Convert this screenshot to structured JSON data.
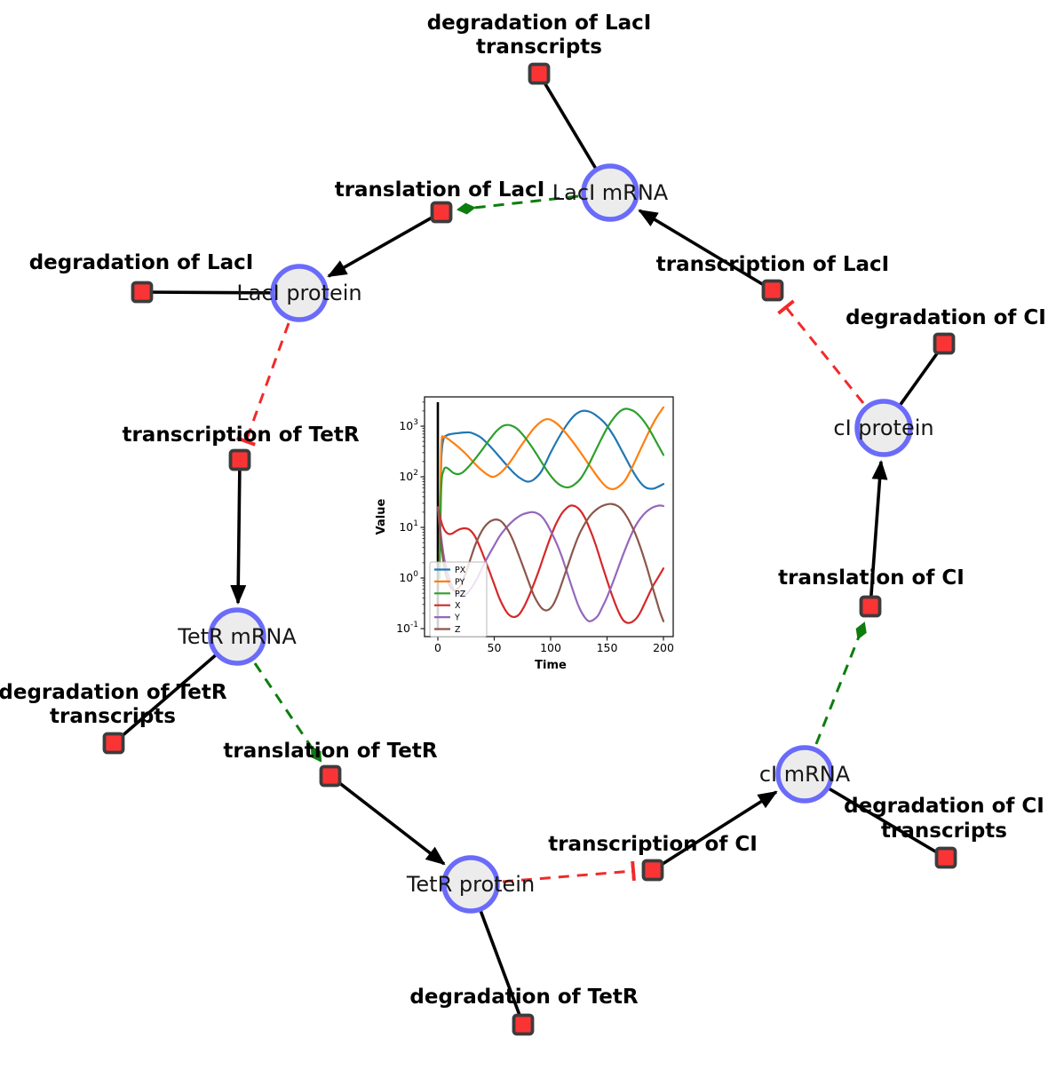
{
  "diagram": {
    "species": [
      {
        "label": "LacI mRNA"
      },
      {
        "label": "LacI protein"
      },
      {
        "label": "TetR mRNA"
      },
      {
        "label": "TetR protein"
      },
      {
        "label": "cI mRNA"
      },
      {
        "label": "cI protein"
      }
    ],
    "reactions": [
      {
        "lines": [
          "degradation of LacI",
          "transcripts"
        ]
      },
      {
        "lines": [
          "translation of LacI"
        ]
      },
      {
        "lines": [
          "degradation of LacI"
        ]
      },
      {
        "lines": [
          "transcription of TetR"
        ]
      },
      {
        "lines": [
          "degradation of TetR",
          "transcripts"
        ]
      },
      {
        "lines": [
          "translation of TetR"
        ]
      },
      {
        "lines": [
          "degradation of TetR"
        ]
      },
      {
        "lines": [
          "transcription of CI"
        ]
      },
      {
        "lines": [
          "degradation of CI",
          "transcripts"
        ]
      },
      {
        "lines": [
          "translation of CI"
        ]
      },
      {
        "lines": [
          "transcription of LacI"
        ]
      },
      {
        "lines": [
          "degradation of CI"
        ]
      }
    ],
    "colors": {
      "species_fill": "#ececec",
      "species_border": "#6b6bfa",
      "reaction_fill": "#fa3434",
      "reaction_border": "#3c3c3c",
      "reactant_product_edge": "#000000",
      "catalysis_edge": "#0d7d0d",
      "inhibition_edge": "#f12a2a"
    }
  },
  "chart_data": {
    "type": "line",
    "title": "",
    "xlabel": "Time",
    "ylabel": "Value",
    "x_ticks": [
      0,
      50,
      100,
      150,
      200
    ],
    "xlim": [
      -10,
      210
    ],
    "y_scale": "log",
    "y_tick_exponents": [
      -1,
      0,
      1,
      2,
      3
    ],
    "grid": false,
    "legend_position": "lower left",
    "axvline_x": 0,
    "series": [
      {
        "name": "PX",
        "color": "#1f77b4",
        "points": [
          [
            1.5,
            3
          ],
          [
            3,
            200
          ],
          [
            5,
            550
          ],
          [
            8,
            660
          ],
          [
            12,
            700
          ],
          [
            18,
            730
          ],
          [
            25,
            755
          ],
          [
            30,
            735
          ],
          [
            38,
            600
          ],
          [
            45,
            430
          ],
          [
            52,
            290
          ],
          [
            60,
            180
          ],
          [
            68,
            115
          ],
          [
            75,
            88
          ],
          [
            80,
            80
          ],
          [
            85,
            88
          ],
          [
            92,
            130
          ],
          [
            100,
            300
          ],
          [
            108,
            640
          ],
          [
            116,
            1200
          ],
          [
            122,
            1700
          ],
          [
            128,
            2000
          ],
          [
            134,
            1950
          ],
          [
            140,
            1650
          ],
          [
            148,
            1150
          ],
          [
            156,
            640
          ],
          [
            164,
            300
          ],
          [
            172,
            140
          ],
          [
            178,
            85
          ],
          [
            184,
            62
          ],
          [
            190,
            58
          ],
          [
            195,
            63
          ],
          [
            200,
            72
          ]
        ]
      },
      {
        "name": "PY",
        "color": "#ff7f0e",
        "points": [
          [
            1.5,
            2
          ],
          [
            3,
            350
          ],
          [
            5,
            600
          ],
          [
            8,
            580
          ],
          [
            12,
            500
          ],
          [
            18,
            390
          ],
          [
            25,
            280
          ],
          [
            32,
            190
          ],
          [
            38,
            140
          ],
          [
            44,
            110
          ],
          [
            48,
            100
          ],
          [
            52,
            105
          ],
          [
            58,
            135
          ],
          [
            65,
            210
          ],
          [
            72,
            360
          ],
          [
            80,
            640
          ],
          [
            86,
            950
          ],
          [
            92,
            1250
          ],
          [
            96,
            1370
          ],
          [
            100,
            1340
          ],
          [
            106,
            1100
          ],
          [
            112,
            800
          ],
          [
            120,
            480
          ],
          [
            128,
            270
          ],
          [
            136,
            150
          ],
          [
            144,
            85
          ],
          [
            150,
            62
          ],
          [
            155,
            57
          ],
          [
            160,
            63
          ],
          [
            166,
            85
          ],
          [
            172,
            150
          ],
          [
            180,
            360
          ],
          [
            188,
            850
          ],
          [
            194,
            1500
          ],
          [
            200,
            2350
          ]
        ]
      },
      {
        "name": "PZ",
        "color": "#2ca02c",
        "points": [
          [
            1.5,
            1
          ],
          [
            3,
            60
          ],
          [
            5,
            130
          ],
          [
            7,
            152
          ],
          [
            10,
            140
          ],
          [
            14,
            118
          ],
          [
            18,
            113
          ],
          [
            22,
            122
          ],
          [
            28,
            165
          ],
          [
            34,
            240
          ],
          [
            40,
            360
          ],
          [
            46,
            550
          ],
          [
            52,
            800
          ],
          [
            57,
            990
          ],
          [
            61,
            1060
          ],
          [
            65,
            1030
          ],
          [
            70,
            900
          ],
          [
            76,
            650
          ],
          [
            82,
            430
          ],
          [
            88,
            270
          ],
          [
            94,
            165
          ],
          [
            100,
            105
          ],
          [
            106,
            75
          ],
          [
            111,
            64
          ],
          [
            116,
            62
          ],
          [
            121,
            70
          ],
          [
            127,
            95
          ],
          [
            133,
            160
          ],
          [
            139,
            300
          ],
          [
            145,
            560
          ],
          [
            151,
            1000
          ],
          [
            157,
            1550
          ],
          [
            162,
            2000
          ],
          [
            166,
            2200
          ],
          [
            170,
            2150
          ],
          [
            175,
            1900
          ],
          [
            181,
            1400
          ],
          [
            187,
            900
          ],
          [
            193,
            520
          ],
          [
            200,
            270
          ]
        ]
      },
      {
        "name": "X",
        "color": "#d62728",
        "points": [
          [
            0,
            25
          ],
          [
            2,
            16
          ],
          [
            4,
            11
          ],
          [
            6,
            8.8
          ],
          [
            8,
            7.8
          ],
          [
            10,
            7.4
          ],
          [
            13,
            7.6
          ],
          [
            16,
            8.4
          ],
          [
            20,
            9.3
          ],
          [
            24,
            9.6
          ],
          [
            28,
            9.0
          ],
          [
            32,
            7.2
          ],
          [
            36,
            4.8
          ],
          [
            40,
            2.9
          ],
          [
            45,
            1.5
          ],
          [
            50,
            0.75
          ],
          [
            55,
            0.38
          ],
          [
            60,
            0.23
          ],
          [
            64,
            0.18
          ],
          [
            68,
            0.17
          ],
          [
            72,
            0.19
          ],
          [
            76,
            0.26
          ],
          [
            80,
            0.4
          ],
          [
            85,
            0.75
          ],
          [
            90,
            1.5
          ],
          [
            95,
            3.2
          ],
          [
            100,
            6.5
          ],
          [
            105,
            12
          ],
          [
            110,
            19
          ],
          [
            115,
            25
          ],
          [
            118,
            27
          ],
          [
            122,
            26
          ],
          [
            126,
            22
          ],
          [
            130,
            16
          ],
          [
            135,
            9
          ],
          [
            140,
            4.5
          ],
          [
            145,
            2.0
          ],
          [
            150,
            0.9
          ],
          [
            155,
            0.42
          ],
          [
            160,
            0.22
          ],
          [
            164,
            0.15
          ],
          [
            168,
            0.13
          ],
          [
            172,
            0.135
          ],
          [
            176,
            0.16
          ],
          [
            180,
            0.22
          ],
          [
            185,
            0.38
          ],
          [
            190,
            0.65
          ],
          [
            195,
            1.0
          ],
          [
            200,
            1.55
          ]
        ]
      },
      {
        "name": "Y",
        "color": "#9467bd",
        "points": [
          [
            0,
            25
          ],
          [
            2,
            10
          ],
          [
            4,
            4.2
          ],
          [
            6,
            2.2
          ],
          [
            9,
            1.2
          ],
          [
            12,
            0.75
          ],
          [
            15,
            0.55
          ],
          [
            18,
            0.46
          ],
          [
            22,
            0.44
          ],
          [
            26,
            0.5
          ],
          [
            30,
            0.65
          ],
          [
            35,
            1.0
          ],
          [
            40,
            1.7
          ],
          [
            45,
            2.8
          ],
          [
            50,
            4.4
          ],
          [
            55,
            6.8
          ],
          [
            60,
            9.5
          ],
          [
            65,
            12.5
          ],
          [
            70,
            15.5
          ],
          [
            75,
            18
          ],
          [
            80,
            19.5
          ],
          [
            84,
            20
          ],
          [
            88,
            19
          ],
          [
            92,
            16.5
          ],
          [
            96,
            12.5
          ],
          [
            100,
            8.5
          ],
          [
            105,
            5
          ],
          [
            110,
            2.6
          ],
          [
            115,
            1.2
          ],
          [
            120,
            0.55
          ],
          [
            125,
            0.27
          ],
          [
            130,
            0.17
          ],
          [
            134,
            0.14
          ],
          [
            138,
            0.15
          ],
          [
            142,
            0.18
          ],
          [
            146,
            0.27
          ],
          [
            150,
            0.42
          ],
          [
            155,
            0.8
          ],
          [
            160,
            1.6
          ],
          [
            165,
            3.2
          ],
          [
            170,
            6
          ],
          [
            175,
            10.5
          ],
          [
            180,
            15.5
          ],
          [
            185,
            20.5
          ],
          [
            190,
            24.5
          ],
          [
            194,
            26.5
          ],
          [
            197,
            27
          ],
          [
            200,
            26.5
          ]
        ]
      },
      {
        "name": "Z",
        "color": "#8c564b",
        "points": [
          [
            0,
            25
          ],
          [
            2,
            8
          ],
          [
            4,
            3
          ],
          [
            6,
            1.5
          ],
          [
            9,
            0.85
          ],
          [
            12,
            0.62
          ],
          [
            15,
            0.57
          ],
          [
            18,
            0.62
          ],
          [
            21,
            0.78
          ],
          [
            25,
            1.3
          ],
          [
            29,
            2.4
          ],
          [
            33,
            4.4
          ],
          [
            37,
            7
          ],
          [
            41,
            10
          ],
          [
            45,
            12.5
          ],
          [
            49,
            14
          ],
          [
            52,
            14.3
          ],
          [
            55,
            13.7
          ],
          [
            58,
            12
          ],
          [
            62,
            9
          ],
          [
            66,
            6
          ],
          [
            70,
            3.6
          ],
          [
            75,
            1.8
          ],
          [
            80,
            0.9
          ],
          [
            85,
            0.46
          ],
          [
            90,
            0.29
          ],
          [
            94,
            0.235
          ],
          [
            98,
            0.235
          ],
          [
            102,
            0.29
          ],
          [
            106,
            0.45
          ],
          [
            110,
            0.8
          ],
          [
            115,
            1.7
          ],
          [
            120,
            3.6
          ],
          [
            125,
            7
          ],
          [
            130,
            11.5
          ],
          [
            135,
            17
          ],
          [
            140,
            22
          ],
          [
            145,
            26
          ],
          [
            150,
            28.5
          ],
          [
            154,
            29
          ],
          [
            158,
            27.5
          ],
          [
            162,
            24
          ],
          [
            166,
            18.5
          ],
          [
            170,
            13
          ],
          [
            175,
            7.5
          ],
          [
            180,
            3.8
          ],
          [
            185,
            1.7
          ],
          [
            190,
            0.7
          ],
          [
            194,
            0.35
          ],
          [
            197,
            0.21
          ],
          [
            200,
            0.14
          ]
        ]
      }
    ]
  }
}
